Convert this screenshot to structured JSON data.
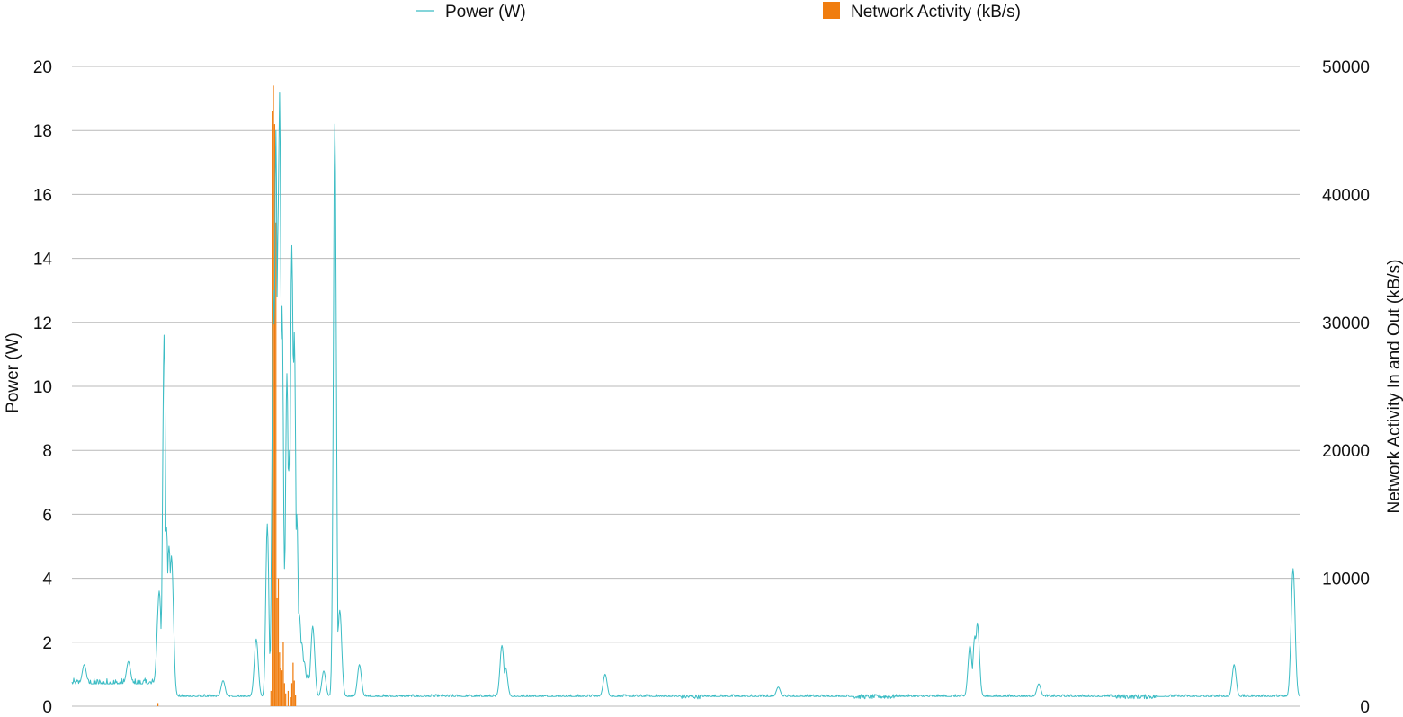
{
  "chart_data": {
    "type": "line",
    "grid": true,
    "legend_position": "top",
    "colors": {
      "power": "#3bbcc4",
      "network": "#f07d0f",
      "grid": "#b9b9b9"
    },
    "left_axis": {
      "label": "Power (W)",
      "range": [
        0,
        20
      ],
      "ticks": [
        "0",
        "2",
        "4",
        "6",
        "8",
        "10",
        "12",
        "14",
        "16",
        "18",
        "20"
      ]
    },
    "right_axis": {
      "label": "Network Activity In and Out (kB/s)",
      "range": [
        0,
        50000
      ],
      "ticks": [
        "0",
        "10000",
        "20000",
        "30000",
        "40000",
        "50000"
      ]
    },
    "x_range": [
      0,
      1000
    ],
    "series": [
      {
        "name": "Power (W)",
        "type": "line",
        "axis": "left",
        "baseline": 0.3,
        "early_baseline": 0.7,
        "early_until": 70,
        "peaks": [
          {
            "x": 10,
            "y": 1.3
          },
          {
            "x": 46,
            "y": 1.4
          },
          {
            "x": 71,
            "y": 3.6
          },
          {
            "x": 75,
            "y": 11.6
          },
          {
            "x": 77,
            "y": 5.6
          },
          {
            "x": 79,
            "y": 5.0
          },
          {
            "x": 81,
            "y": 4.7
          },
          {
            "x": 123,
            "y": 0.8
          },
          {
            "x": 150,
            "y": 2.1
          },
          {
            "x": 159,
            "y": 5.7
          },
          {
            "x": 164,
            "y": 13.0
          },
          {
            "x": 166,
            "y": 18.0
          },
          {
            "x": 168,
            "y": 15.8
          },
          {
            "x": 169,
            "y": 19.2
          },
          {
            "x": 171,
            "y": 12.5
          },
          {
            "x": 173,
            "y": 4.3
          },
          {
            "x": 175,
            "y": 10.4
          },
          {
            "x": 177,
            "y": 8.0
          },
          {
            "x": 179,
            "y": 14.4
          },
          {
            "x": 180,
            "y": 11.0
          },
          {
            "x": 181,
            "y": 11.7
          },
          {
            "x": 183,
            "y": 6.0
          },
          {
            "x": 185,
            "y": 2.9
          },
          {
            "x": 187,
            "y": 2.0
          },
          {
            "x": 189,
            "y": 1.4
          },
          {
            "x": 192,
            "y": 1.0
          },
          {
            "x": 196,
            "y": 2.5
          },
          {
            "x": 205,
            "y": 1.1
          },
          {
            "x": 214,
            "y": 18.2
          },
          {
            "x": 218,
            "y": 3.0
          },
          {
            "x": 234,
            "y": 1.3
          },
          {
            "x": 350,
            "y": 1.9
          },
          {
            "x": 353,
            "y": 1.2
          },
          {
            "x": 434,
            "y": 1.0
          },
          {
            "x": 575,
            "y": 0.6
          },
          {
            "x": 731,
            "y": 1.9
          },
          {
            "x": 735,
            "y": 2.2
          },
          {
            "x": 737,
            "y": 2.6
          },
          {
            "x": 787,
            "y": 0.7
          },
          {
            "x": 946,
            "y": 1.3
          },
          {
            "x": 994,
            "y": 4.3
          }
        ]
      },
      {
        "name": "Network Activity (kB/s)",
        "type": "bar",
        "axis": "right",
        "bars": [
          {
            "x": 162,
            "y": 1200
          },
          {
            "x": 163,
            "y": 46500
          },
          {
            "x": 164,
            "y": 48500
          },
          {
            "x": 165,
            "y": 45500
          },
          {
            "x": 166,
            "y": 37800
          },
          {
            "x": 167,
            "y": 8500
          },
          {
            "x": 168,
            "y": 10000
          },
          {
            "x": 169,
            "y": 4200
          },
          {
            "x": 170,
            "y": 3000
          },
          {
            "x": 171,
            "y": 2800
          },
          {
            "x": 172,
            "y": 5000
          },
          {
            "x": 173,
            "y": 1800
          },
          {
            "x": 174,
            "y": 1000
          },
          {
            "x": 176,
            "y": 1200
          },
          {
            "x": 178,
            "y": 700
          },
          {
            "x": 179,
            "y": 1800
          },
          {
            "x": 180,
            "y": 3400
          },
          {
            "x": 181,
            "y": 2000
          },
          {
            "x": 182,
            "y": 900
          },
          {
            "x": 70,
            "y": 250
          }
        ]
      }
    ]
  }
}
